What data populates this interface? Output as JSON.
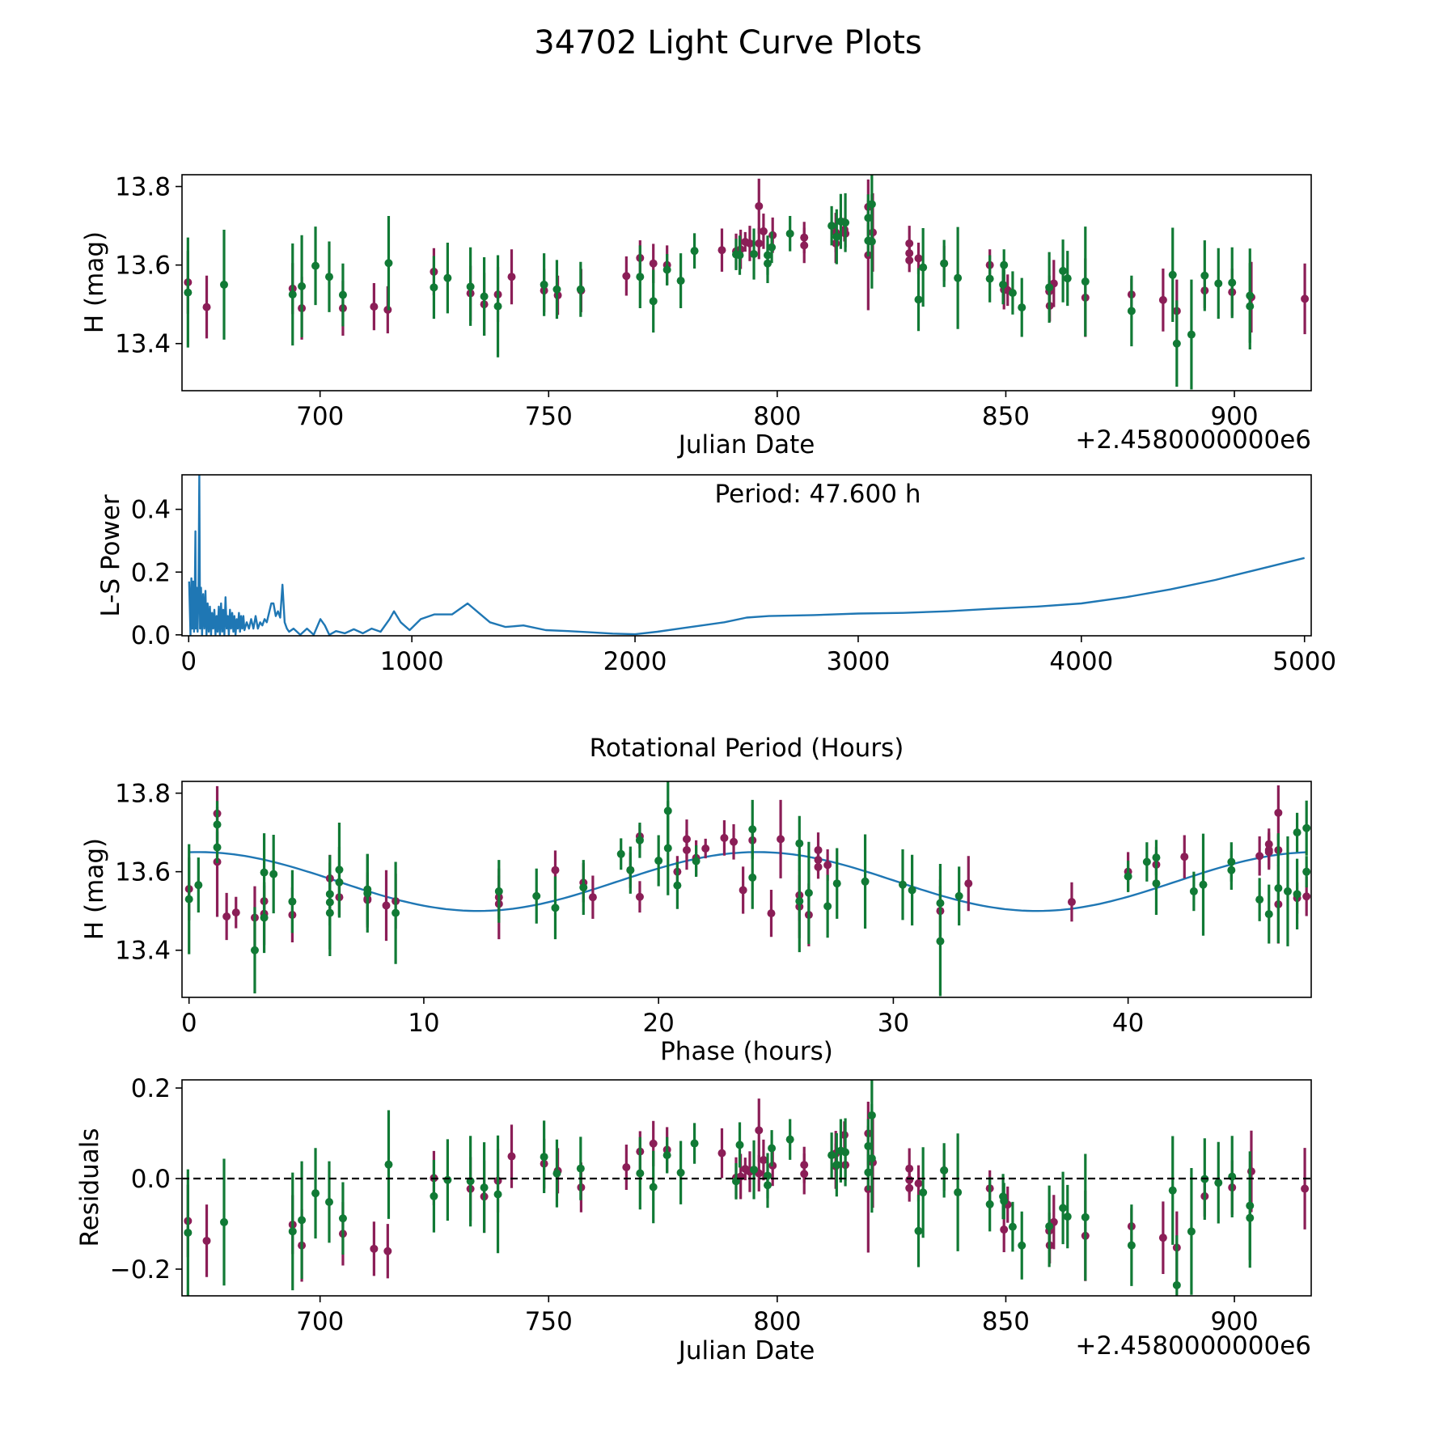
{
  "title": "34702 Light Curve Plots",
  "colors": {
    "band_a": "#8b1e57",
    "band_b": "#117a35",
    "fit": "#1f77b4",
    "zero_line": "#000000"
  },
  "chart_data": [
    {
      "id": "lightcurve",
      "type": "scatter",
      "title": "",
      "xlabel": "Julian Date",
      "ylabel": "H (mag)",
      "x_offset_label": "+2.4580000000e6",
      "xlim": [
        669.8,
        916.8
      ],
      "ylim": [
        13.28,
        13.83
      ],
      "xticks": [
        700,
        750,
        800,
        850,
        900
      ],
      "xtick_labels": [
        "700",
        "750",
        "800",
        "850",
        "900"
      ],
      "yticks": [
        13.4,
        13.6,
        13.8
      ],
      "ytick_labels": [
        "13.4",
        "13.6",
        "13.8"
      ],
      "error_bars": true,
      "series": [
        {
          "name": "band_a",
          "color": "#8b1e57",
          "points": [
            [
              671.1,
              13.556,
              0.08
            ],
            [
              675.2,
              13.493,
              0.08
            ],
            [
              694.0,
              13.54,
              0.065
            ],
            [
              696.0,
              13.49,
              0.08
            ],
            [
              705.0,
              13.49,
              0.07
            ],
            [
              711.8,
              13.494,
              0.06
            ],
            [
              714.8,
              13.486,
              0.06
            ],
            [
              724.9,
              13.583,
              0.06
            ],
            [
              732.9,
              13.528,
              0.07
            ],
            [
              735.9,
              13.5,
              0.08
            ],
            [
              738.9,
              13.525,
              0.07
            ],
            [
              741.9,
              13.57,
              0.07
            ],
            [
              749.0,
              13.535,
              0.055
            ],
            [
              752.0,
              13.523,
              0.05
            ],
            [
              757.1,
              13.535,
              0.055
            ],
            [
              767.0,
              13.572,
              0.05
            ],
            [
              770.0,
              13.618,
              0.045
            ],
            [
              772.9,
              13.604,
              0.05
            ],
            [
              775.9,
              13.6,
              0.05
            ],
            [
              787.9,
              13.638,
              0.055
            ],
            [
              791.0,
              13.635,
              0.045
            ],
            [
              792.0,
              13.64,
              0.05
            ],
            [
              793.0,
              13.659,
              0.025
            ],
            [
              794.0,
              13.655,
              0.045
            ],
            [
              796.0,
              13.655,
              0.04
            ],
            [
              796.0,
              13.75,
              0.07
            ],
            [
              797.0,
              13.686,
              0.045
            ],
            [
              799.0,
              13.676,
              0.045
            ],
            [
              805.9,
              13.67,
              0.04
            ],
            [
              805.9,
              13.65,
              0.045
            ],
            [
              812.8,
              13.683,
              0.05
            ],
            [
              812.8,
              13.655,
              0.05
            ],
            [
              814.7,
              13.69,
              0.03
            ],
            [
              814.9,
              13.68,
              0.035
            ],
            [
              819.9,
              13.748,
              0.07
            ],
            [
              819.9,
              13.625,
              0.14
            ],
            [
              820.9,
              13.683,
              0.1
            ],
            [
              828.9,
              13.655,
              0.045
            ],
            [
              828.9,
              13.63,
              0.03
            ],
            [
              828.9,
              13.612,
              0.03
            ],
            [
              830.9,
              13.617,
              0.04
            ],
            [
              836.5,
              13.604,
              0.045
            ],
            [
              846.5,
              13.6,
              0.04
            ],
            [
              849.6,
              13.537,
              0.05
            ],
            [
              850.4,
              13.536,
              0.04
            ],
            [
              859.5,
              13.533,
              0.04
            ],
            [
              859.6,
              13.496,
              0.04
            ],
            [
              860.5,
              13.553,
              0.06
            ],
            [
              867.4,
              13.517,
              0.1
            ],
            [
              877.5,
              13.525,
              0.04
            ],
            [
              884.4,
              13.511,
              0.08
            ],
            [
              887.4,
              13.483,
              0.08
            ],
            [
              893.5,
              13.535,
              0.045
            ],
            [
              899.5,
              13.531,
              0.06
            ],
            [
              903.7,
              13.518,
              0.09
            ],
            [
              915.4,
              13.514,
              0.09
            ]
          ]
        },
        {
          "name": "band_b",
          "color": "#117a35",
          "points": [
            [
              671.1,
              13.53,
              0.14
            ],
            [
              679.0,
              13.55,
              0.14
            ],
            [
              694.0,
              13.525,
              0.13
            ],
            [
              696.0,
              13.546,
              0.13
            ],
            [
              699.0,
              13.598,
              0.1
            ],
            [
              702.0,
              13.57,
              0.09
            ],
            [
              705.0,
              13.524,
              0.08
            ],
            [
              715.0,
              13.605,
              0.12
            ],
            [
              724.9,
              13.543,
              0.08
            ],
            [
              727.9,
              13.567,
              0.09
            ],
            [
              732.9,
              13.545,
              0.1
            ],
            [
              735.9,
              13.52,
              0.1
            ],
            [
              738.9,
              13.495,
              0.13
            ],
            [
              749.0,
              13.55,
              0.08
            ],
            [
              751.8,
              13.538,
              0.075
            ],
            [
              757.0,
              13.538,
              0.07
            ],
            [
              770.0,
              13.57,
              0.08
            ],
            [
              772.9,
              13.508,
              0.08
            ],
            [
              775.9,
              13.588,
              0.04
            ],
            [
              778.9,
              13.56,
              0.07
            ],
            [
              781.9,
              13.636,
              0.045
            ],
            [
              791.0,
              13.627,
              0.04
            ],
            [
              791.8,
              13.625,
              0.05
            ],
            [
              794.9,
              13.628,
              0.065
            ],
            [
              797.9,
              13.625,
              0.05
            ],
            [
              797.9,
              13.604,
              0.05
            ],
            [
              798.8,
              13.645,
              0.04
            ],
            [
              802.8,
              13.68,
              0.045
            ],
            [
              811.9,
              13.7,
              0.05
            ],
            [
              813.0,
              13.672,
              0.07
            ],
            [
              813.9,
              13.711,
              0.07
            ],
            [
              814.9,
              13.708,
              0.075
            ],
            [
              819.9,
              13.72,
              0.06
            ],
            [
              819.9,
              13.662,
              0.04
            ],
            [
              820.7,
              13.755,
              0.1
            ],
            [
              820.7,
              13.66,
              0.12
            ],
            [
              830.9,
              13.512,
              0.08
            ],
            [
              831.9,
              13.594,
              0.1
            ],
            [
              836.5,
              13.604,
              0.06
            ],
            [
              839.5,
              13.567,
              0.13
            ],
            [
              846.5,
              13.565,
              0.06
            ],
            [
              849.6,
              13.6,
              0.04
            ],
            [
              849.4,
              13.55,
              0.05
            ],
            [
              851.5,
              13.529,
              0.055
            ],
            [
              853.5,
              13.492,
              0.075
            ],
            [
              859.5,
              13.543,
              0.09
            ],
            [
              862.5,
              13.585,
              0.08
            ],
            [
              863.5,
              13.566,
              0.07
            ],
            [
              867.4,
              13.558,
              0.14
            ],
            [
              877.5,
              13.483,
              0.09
            ],
            [
              886.5,
              13.575,
              0.12
            ],
            [
              887.4,
              13.4,
              0.11
            ],
            [
              890.6,
              13.423,
              0.14
            ],
            [
              893.5,
              13.573,
              0.09
            ],
            [
              896.5,
              13.553,
              0.09
            ],
            [
              899.5,
              13.555,
              0.09
            ],
            [
              903.4,
              13.522,
              0.12
            ],
            [
              903.4,
              13.495,
              0.11
            ]
          ]
        }
      ]
    },
    {
      "id": "periodogram",
      "type": "line",
      "xlabel": "Rotational Period (Hours)",
      "ylabel": "L-S Power",
      "annotation": "Period: 47.600 h",
      "xlim": [
        -30,
        5030
      ],
      "ylim": [
        -0.003,
        0.51
      ],
      "xticks": [
        0,
        1000,
        2000,
        3000,
        4000,
        5000
      ],
      "xtick_labels": [
        "0",
        "1000",
        "2000",
        "3000",
        "4000",
        "5000"
      ],
      "yticks": [
        0.0,
        0.2,
        0.4
      ],
      "ytick_labels": [
        "0.0",
        "0.2",
        "0.4"
      ],
      "color": "#1f77b4",
      "x": [
        2,
        8,
        12,
        16,
        20,
        24,
        28,
        30,
        32,
        36,
        40,
        44,
        47.6,
        51,
        55,
        60,
        65,
        70,
        75,
        80,
        85,
        90,
        95,
        100,
        105,
        110,
        115,
        120,
        125,
        130,
        135,
        140,
        145,
        150,
        155,
        160,
        165,
        170,
        175,
        180,
        185,
        190,
        195,
        200,
        205,
        210,
        215,
        220,
        225,
        230,
        235,
        240,
        245,
        250,
        260,
        270,
        280,
        290,
        300,
        310,
        320,
        330,
        340,
        350,
        360,
        370,
        380,
        390,
        400,
        410,
        420,
        430,
        440,
        450,
        470,
        500,
        530,
        560,
        590,
        610,
        630,
        660,
        700,
        740,
        780,
        820,
        860,
        900,
        920,
        950,
        990,
        1040,
        1100,
        1180,
        1250,
        1300,
        1350,
        1420,
        1500,
        1600,
        1700,
        1800,
        1900,
        2000,
        2100,
        2200,
        2300,
        2400,
        2500,
        2600,
        2800,
        3000,
        3200,
        3400,
        3600,
        3800,
        4000,
        4200,
        4400,
        4600,
        4800,
        5000
      ],
      "y": [
        0.17,
        0.0,
        0.18,
        0.02,
        0.17,
        0.01,
        0.18,
        0.33,
        0.02,
        0.15,
        0.01,
        0.14,
        0.51,
        0.02,
        0.15,
        0.0,
        0.13,
        0.02,
        0.14,
        0.0,
        0.1,
        0.01,
        0.09,
        0.0,
        0.07,
        0.02,
        0.08,
        0.0,
        0.06,
        0.01,
        0.09,
        0.0,
        0.1,
        0.01,
        0.08,
        0.0,
        0.12,
        0.02,
        0.06,
        0.0,
        0.08,
        0.02,
        0.07,
        0.01,
        0.06,
        0.0,
        0.05,
        0.02,
        0.07,
        0.01,
        0.06,
        0.02,
        0.06,
        0.015,
        0.04,
        0.02,
        0.05,
        0.02,
        0.06,
        0.02,
        0.04,
        0.03,
        0.05,
        0.04,
        0.07,
        0.1,
        0.1,
        0.06,
        0.075,
        0.055,
        0.16,
        0.04,
        0.02,
        0.01,
        0.02,
        0.0,
        0.02,
        0.0,
        0.05,
        0.03,
        0.0,
        0.012,
        0.005,
        0.018,
        0.005,
        0.02,
        0.01,
        0.05,
        0.075,
        0.04,
        0.015,
        0.05,
        0.065,
        0.065,
        0.1,
        0.07,
        0.04,
        0.025,
        0.03,
        0.015,
        0.012,
        0.008,
        0.004,
        0.002,
        0.01,
        0.02,
        0.03,
        0.04,
        0.055,
        0.06,
        0.063,
        0.068,
        0.07,
        0.075,
        0.083,
        0.09,
        0.1,
        0.12,
        0.145,
        0.175,
        0.21,
        0.245
      ]
    },
    {
      "id": "phased",
      "type": "scatter",
      "xlabel": "Phase (hours)",
      "ylabel": "H (mag)",
      "xlim": [
        -0.3,
        47.8
      ],
      "ylim": [
        13.28,
        13.83
      ],
      "xticks": [
        0,
        10,
        20,
        30,
        40
      ],
      "xtick_labels": [
        "0",
        "10",
        "20",
        "30",
        "40"
      ],
      "yticks": [
        13.4,
        13.6,
        13.8
      ],
      "ytick_labels": [
        "13.4",
        "13.6",
        "13.8"
      ],
      "phase_source": "lightcurve",
      "period_hours": 47.6,
      "epoch_jd": 671.1,
      "fit": {
        "mean": 13.575,
        "amplitude": 0.075,
        "harmonic": 2,
        "peak_phase_hours": 0.4
      }
    },
    {
      "id": "residuals",
      "type": "scatter",
      "xlabel": "Julian Date",
      "ylabel": "Residuals",
      "x_offset_label": "+2.4580000000e6",
      "xlim": [
        669.8,
        916.8
      ],
      "ylim": [
        -0.259,
        0.218
      ],
      "xticks": [
        700,
        750,
        800,
        850,
        900
      ],
      "xtick_labels": [
        "700",
        "750",
        "800",
        "850",
        "900"
      ],
      "yticks": [
        -0.2,
        0.0,
        0.2
      ],
      "ytick_labels": [
        "−0.2",
        "0.0",
        "0.2"
      ],
      "reference_line": 0.0,
      "residual_source": "lightcurve"
    }
  ]
}
